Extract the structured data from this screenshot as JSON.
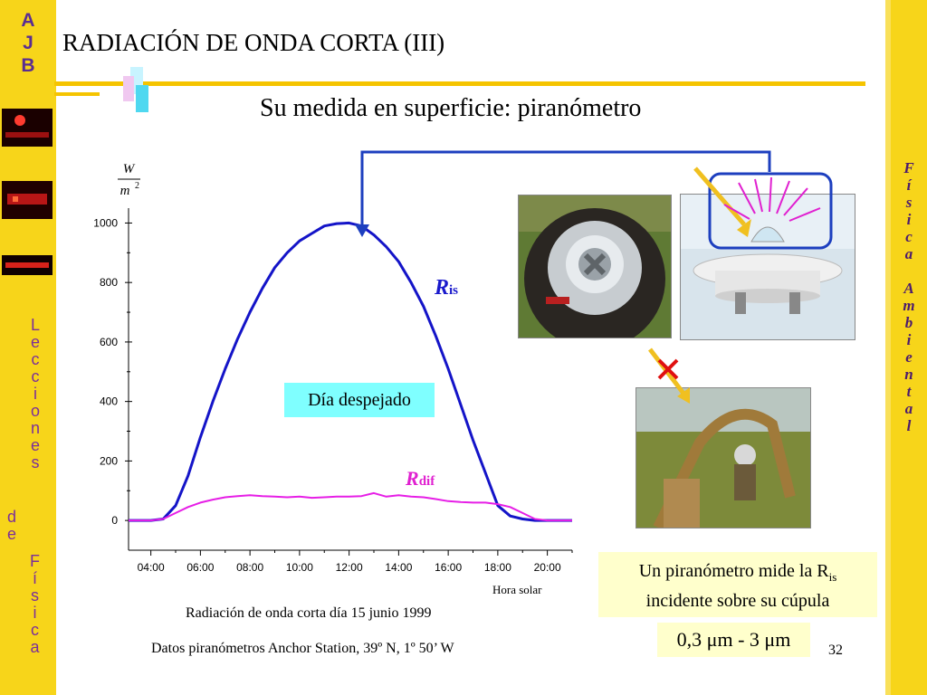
{
  "sidebar_left": {
    "letters_top": [
      "A",
      "J",
      "B"
    ],
    "letters_lecciones": [
      "L",
      "e",
      "c",
      "c",
      "i",
      "o",
      "n",
      "e",
      "s"
    ],
    "letters_de": [
      "d",
      "e"
    ],
    "letters_fisica": [
      "F",
      "í",
      "s",
      "i",
      "c",
      "a"
    ]
  },
  "sidebar_right": {
    "letters": [
      "F",
      "í",
      "s",
      "i",
      "c",
      "a",
      " ",
      "A",
      "m",
      "b",
      "i",
      "e",
      "n",
      "t",
      "a",
      "l"
    ]
  },
  "slide": {
    "title": "RADIACIÓN DE ONDA CORTA (III)",
    "subtitle": "Su medida en superficie: piranómetro",
    "clear_day_label": "Día despejado",
    "info_text_a": "Un piranómetro mide la R",
    "info_text_sub": "is",
    "info_text_b": "incidente sobre su cúpula",
    "range_text": "0,3 μm - 3 μm",
    "page_number": "32",
    "caption_1": "Radiación de onda corta día 15 junio 1999",
    "caption_2": "Datos piranómetros Anchor Station, 39º N, 1º 50’ W"
  },
  "chart_data": {
    "type": "line",
    "title": "",
    "xlabel": "Hora solar",
    "ylabel_num": "W",
    "ylabel_den": "m",
    "ylabel_den_exp": "2",
    "x_ticks": [
      "04:00",
      "06:00",
      "08:00",
      "10:00",
      "12:00",
      "14:00",
      "16:00",
      "18:00",
      "20:00"
    ],
    "y_ticks": [
      "0",
      "200",
      "400",
      "600",
      "800",
      "1000"
    ],
    "xlim": [
      3.1,
      21.0
    ],
    "ylim": [
      -100,
      1050
    ],
    "colors": {
      "ris": "#1414c8",
      "rdif": "#e61ee6"
    },
    "series": [
      {
        "name": "R",
        "name_sub": "is",
        "x": [
          3.1,
          4.0,
          4.5,
          5.0,
          5.5,
          6.0,
          6.5,
          7.0,
          7.5,
          8.0,
          8.5,
          9.0,
          9.5,
          10.0,
          10.5,
          11.0,
          11.5,
          12.0,
          12.5,
          13.0,
          13.5,
          14.0,
          14.5,
          15.0,
          15.5,
          16.0,
          16.5,
          17.0,
          17.5,
          18.0,
          18.5,
          19.0,
          19.5,
          20.0,
          21.0
        ],
        "y": [
          0,
          0,
          5,
          50,
          150,
          280,
          400,
          510,
          610,
          700,
          780,
          850,
          900,
          940,
          965,
          990,
          998,
          1000,
          990,
          960,
          920,
          870,
          800,
          720,
          620,
          510,
          390,
          270,
          160,
          50,
          15,
          5,
          0,
          0,
          0
        ]
      },
      {
        "name": "R",
        "name_sub": "dif",
        "x": [
          3.1,
          4.0,
          4.5,
          5.0,
          5.5,
          6.0,
          6.5,
          7.0,
          7.5,
          8.0,
          8.5,
          9.0,
          9.5,
          10.0,
          10.5,
          11.0,
          11.5,
          12.0,
          12.5,
          13.0,
          13.5,
          14.0,
          14.5,
          15.0,
          15.5,
          16.0,
          16.5,
          17.0,
          17.5,
          18.0,
          18.5,
          19.0,
          19.5,
          20.0,
          21.0
        ],
        "y": [
          0,
          0,
          5,
          25,
          45,
          60,
          70,
          78,
          82,
          85,
          82,
          80,
          78,
          80,
          76,
          78,
          80,
          80,
          82,
          92,
          80,
          85,
          80,
          78,
          72,
          65,
          62,
          60,
          60,
          55,
          45,
          25,
          5,
          0,
          0
        ]
      }
    ]
  }
}
